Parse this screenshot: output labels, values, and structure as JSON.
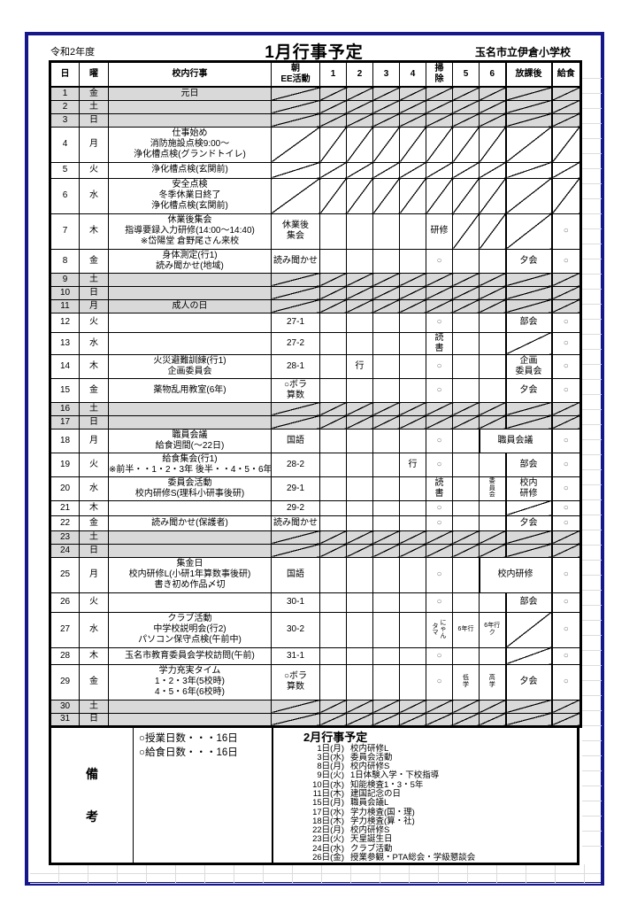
{
  "header": {
    "fiscal_year": "令和2年度",
    "title": "1月行事予定",
    "school": "玉名市立伊倉小学校"
  },
  "columns": [
    "日",
    "曜",
    "校内行事",
    "朝\nEE活動",
    "1",
    "2",
    "3",
    "4",
    "掃\n除",
    "5",
    "6",
    "放課後",
    "給食"
  ],
  "rows": [
    {
      "d": "1",
      "w": "金",
      "sh": 1,
      "h": 15,
      "ev": [
        "元日"
      ],
      "all": "D"
    },
    {
      "d": "2",
      "w": "土",
      "sh": 1,
      "h": 15,
      "ev": [],
      "all": "D"
    },
    {
      "d": "3",
      "w": "日",
      "sh": 1,
      "h": 15,
      "ev": [],
      "all": "D"
    },
    {
      "d": "4",
      "w": "月",
      "h": 40,
      "ev": [
        "仕事始め",
        "消防施設点検9:00～",
        "浄化槽点検(グランドトイレ)"
      ],
      "all": "D"
    },
    {
      "d": "5",
      "w": "火",
      "h": 18,
      "ev": [
        "浄化槽点検(玄関前)"
      ],
      "all": "D"
    },
    {
      "d": "6",
      "w": "水",
      "h": 40,
      "ev": [
        "安全点検",
        "冬季休業日終了",
        "浄化槽点検(玄関前)"
      ],
      "all": "D"
    },
    {
      "d": "7",
      "w": "木",
      "h": 40,
      "ev": [
        "休業後集会",
        "指導要録入力研修(14:00～14:40)",
        "※岱陽堂 倉野尾さん来校"
      ],
      "am": "休業後\n集会",
      "c": {
        "soji": "研修",
        "p5": "D",
        "p6": "D",
        "after": "D"
      },
      "lunch": "○"
    },
    {
      "d": "8",
      "w": "金",
      "h": 27,
      "ev": [
        "身体測定(行1)",
        "読み聞かせ(地域)"
      ],
      "am": "読み聞かせ",
      "c": {
        "soji": "○",
        "after": "夕会"
      },
      "lunch": "○"
    },
    {
      "d": "9",
      "w": "土",
      "sh": 1,
      "h": 15,
      "ev": [],
      "all": "D"
    },
    {
      "d": "10",
      "w": "日",
      "sh": 1,
      "h": 15,
      "ev": [],
      "all": "D"
    },
    {
      "d": "11",
      "w": "月",
      "sh": 1,
      "h": 15,
      "ev": [
        "成人の日"
      ],
      "all": "D"
    },
    {
      "d": "12",
      "w": "火",
      "h": 22,
      "ev": [],
      "am": "27-1",
      "c": {
        "soji": "○",
        "after": "部会"
      },
      "lunch": "○"
    },
    {
      "d": "13",
      "w": "水",
      "h": 22,
      "ev": [],
      "am": "27-2",
      "c": {
        "soji": "読\n書",
        "after": "D"
      },
      "lunch": "○"
    },
    {
      "d": "14",
      "w": "木",
      "h": 27,
      "ev": [
        "火災避難訓練(行1)",
        "企画委員会"
      ],
      "am": "28-1",
      "c": {
        "p2": "行",
        "soji": "○",
        "after": "企画\n委員会"
      },
      "lunch": "○"
    },
    {
      "d": "15",
      "w": "金",
      "h": 27,
      "ev": [
        "薬物乱用教室(6年)"
      ],
      "am": "○ボラ\n算数",
      "c": {
        "soji": "○",
        "after": "夕会"
      },
      "lunch": "○"
    },
    {
      "d": "16",
      "w": "土",
      "sh": 1,
      "h": 15,
      "ev": [],
      "all": "D"
    },
    {
      "d": "17",
      "w": "日",
      "sh": 1,
      "h": 15,
      "ev": [],
      "all": "D"
    },
    {
      "d": "18",
      "w": "月",
      "h": 27,
      "ev": [
        "職員会議",
        "給食週間(～22日)"
      ],
      "am": "国語",
      "c": {
        "soji": "○"
      },
      "m68": "職員会議",
      "lunch": "○"
    },
    {
      "d": "19",
      "w": "火",
      "h": 27,
      "ev": [
        "給食集会(行1)",
        "※前半・・1・2・3年 後半・・4・5・6年"
      ],
      "am": "28-2",
      "c": {
        "p4": "行",
        "soji": "○",
        "after": "部会"
      },
      "lunch": "○"
    },
    {
      "d": "20",
      "w": "水",
      "h": 27,
      "ev": [
        "委員会活動",
        "校内研修S(理科小研事後研)"
      ],
      "am": "29-1",
      "c": {
        "soji": "読\n書",
        "p6": "委員会",
        "after": "校内\n研修"
      },
      "sm": [
        "p6"
      ],
      "vt": [
        "p6"
      ],
      "lunch": "○"
    },
    {
      "d": "21",
      "w": "木",
      "h": 17,
      "ev": [],
      "am": "29-2",
      "c": {
        "soji": "○",
        "after": "D"
      },
      "lunch": "○"
    },
    {
      "d": "22",
      "w": "金",
      "h": 17,
      "ev": [
        "読み聞かせ(保護者)"
      ],
      "am": "読み聞かせ",
      "c": {
        "soji": "○",
        "after": "夕会"
      },
      "lunch": "○"
    },
    {
      "d": "23",
      "w": "土",
      "sh": 1,
      "h": 15,
      "ev": [],
      "all": "D"
    },
    {
      "d": "24",
      "w": "日",
      "sh": 1,
      "h": 15,
      "ev": [],
      "all": "D"
    },
    {
      "d": "25",
      "w": "月",
      "h": 40,
      "ev": [
        "集金日",
        "校内研修L(小研1年算数事後研)",
        "書き初め作品〆切"
      ],
      "am": "国語",
      "c": {
        "soji": "○"
      },
      "m68": "校内研修",
      "lunch": "○"
    },
    {
      "d": "26",
      "w": "火",
      "h": 22,
      "ev": [],
      "am": "30-1",
      "c": {
        "soji": "○",
        "after": "部会"
      },
      "lunch": "○"
    },
    {
      "d": "27",
      "w": "水",
      "h": 40,
      "ev": [
        "クラブ活動",
        "中学校説明会(行2)",
        "パソコン保守点検(午前中)"
      ],
      "am": "30-2",
      "c": {
        "soji": "タマ\nにゃん",
        "p5": "6年行",
        "p6": "6年行\nク",
        "after": "D"
      },
      "sm": [
        "soji",
        "p5",
        "p6"
      ],
      "vt": [
        "soji"
      ],
      "lunch": "○"
    },
    {
      "d": "28",
      "w": "木",
      "h": 19,
      "ev": [
        "玉名市教育委員会学校訪問(午前)"
      ],
      "am": "31-1",
      "c": {
        "soji": "○",
        "after": "D"
      },
      "lunch": "○"
    },
    {
      "d": "29",
      "w": "金",
      "h": 40,
      "ev": [
        "学力充実タイム",
        "1・2・3年(5校時)",
        "4・5・6年(6校時)"
      ],
      "am": "○ボラ\n算数",
      "c": {
        "soji": "○",
        "p5": "低\n学",
        "p6": "高\n学",
        "after": "夕会"
      },
      "sm": [
        "p5",
        "p6"
      ],
      "lunch": "○"
    },
    {
      "d": "30",
      "w": "土",
      "sh": 1,
      "h": 15,
      "ev": [],
      "all": "D"
    },
    {
      "d": "31",
      "w": "日",
      "sh": 1,
      "h": 15,
      "ev": [],
      "all": "D"
    }
  ],
  "remarks": {
    "label": "備考",
    "notes": [
      "○授業日数・・・16日",
      "○給食日数・・・16日"
    ]
  },
  "february": {
    "title": "2月行事予定",
    "items": [
      {
        "date": "1日(月)",
        "label": "校内研修L"
      },
      {
        "date": "3日(水)",
        "label": "委員会活動"
      },
      {
        "date": "8日(月)",
        "label": "校内研修S"
      },
      {
        "date": "9日(火)",
        "label": "1日体験入学・下校指導"
      },
      {
        "date": "10日(水)",
        "label": "知能検査1・3・5年"
      },
      {
        "date": "11日(木)",
        "label": "建国記念の日"
      },
      {
        "date": "15日(月)",
        "label": "職員会議L"
      },
      {
        "date": "17日(水)",
        "label": "学力検査(国・理)"
      },
      {
        "date": "18日(木)",
        "label": "学力検査(算・社)"
      },
      {
        "date": "22日(月)",
        "label": "校内研修S"
      },
      {
        "date": "23日(火)",
        "label": "天皇誕生日"
      },
      {
        "date": "24日(水)",
        "label": "クラブ活動"
      },
      {
        "date": "26日(金)",
        "label": "授業参観・PTA総会・学級懇談会"
      }
    ]
  },
  "colors": {
    "weekend_shade": "#d9d9d9",
    "page_frame": "#17178c",
    "gridline": "#dcdcdc",
    "circle_mark": "#6e6e6e"
  }
}
